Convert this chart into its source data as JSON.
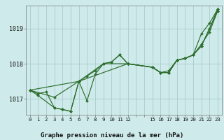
{
  "title": "Graphe pression niveau de la mer (hPa)",
  "bg_color": "#ceeaea",
  "grid_color": "#aacccc",
  "line_color": "#2d6e2d",
  "marker_color": "#2d6e2d",
  "x_ticks_pos": [
    0,
    1,
    2,
    3,
    4,
    5,
    6,
    7,
    8,
    9,
    10,
    11,
    12,
    13,
    14,
    15,
    16,
    17,
    18,
    19,
    20,
    21,
    22,
    23
  ],
  "x_tick_labels_show": [
    "0",
    "1",
    "2",
    "3",
    "4",
    "5",
    "6",
    "7",
    "8",
    "9",
    "10",
    "11",
    "12",
    "",
    "",
    "15",
    "16",
    "17",
    "18",
    "19",
    "20",
    "21",
    "22",
    "23"
  ],
  "ylim": [
    1016.55,
    1019.65
  ],
  "yticks": [
    1017,
    1018,
    1019
  ],
  "series": [
    {
      "x": [
        0,
        1,
        2,
        3,
        4,
        5,
        6,
        7,
        8,
        9,
        10,
        11,
        12,
        15,
        16,
        17,
        18,
        19,
        20,
        21,
        22,
        23
      ],
      "y": [
        1017.25,
        1017.15,
        1017.2,
        1016.75,
        1016.7,
        1016.65,
        1017.5,
        1016.95,
        1017.7,
        1018.0,
        1018.05,
        1018.25,
        1018.0,
        1017.9,
        1017.75,
        1017.75,
        1018.1,
        1018.15,
        1018.25,
        1018.5,
        1019.0,
        1019.5
      ]
    },
    {
      "x": [
        0,
        1,
        3,
        4,
        5,
        6,
        7,
        8,
        9,
        10,
        11,
        12,
        15,
        16,
        17,
        18,
        19,
        20,
        21,
        22,
        23
      ],
      "y": [
        1017.25,
        1017.1,
        1016.75,
        1016.7,
        1016.65,
        1017.5,
        1017.65,
        1017.8,
        1018.0,
        1018.05,
        1018.25,
        1018.0,
        1017.9,
        1017.75,
        1017.75,
        1018.1,
        1018.15,
        1018.25,
        1018.55,
        1018.9,
        1019.5
      ]
    },
    {
      "x": [
        0,
        6,
        12,
        15,
        16,
        17,
        18,
        19,
        20,
        21,
        22,
        23
      ],
      "y": [
        1017.25,
        1017.5,
        1018.0,
        1017.9,
        1017.75,
        1017.75,
        1018.1,
        1018.15,
        1018.25,
        1018.85,
        1019.15,
        1019.55
      ]
    },
    {
      "x": [
        0,
        3,
        6,
        9,
        12,
        15,
        16,
        17,
        18,
        19,
        20,
        21,
        22,
        23
      ],
      "y": [
        1017.25,
        1017.05,
        1017.5,
        1018.0,
        1018.0,
        1017.9,
        1017.75,
        1017.8,
        1018.1,
        1018.15,
        1018.25,
        1018.5,
        1019.0,
        1019.55
      ]
    }
  ]
}
